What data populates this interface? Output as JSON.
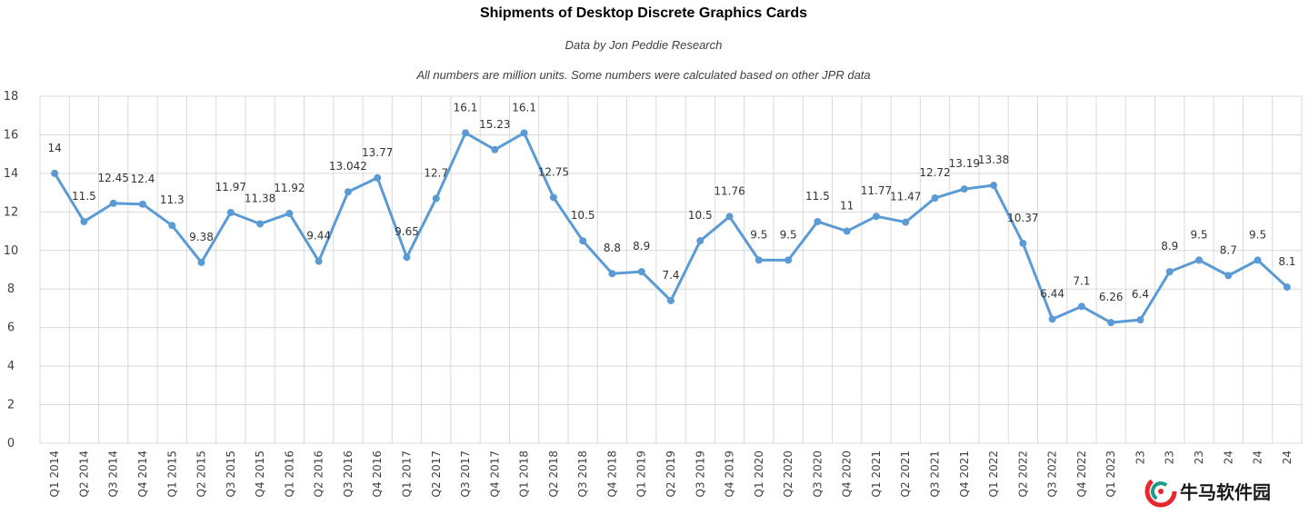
{
  "chart_data": {
    "type": "line",
    "title": "Shipments of Desktop Discrete Graphics Cards",
    "subtitles": [
      "Data by Jon Peddie Research",
      "All numbers are million units. Some numbers were calculated based on other JPR data"
    ],
    "xlabel": "",
    "ylabel": "",
    "ylim": [
      0,
      18
    ],
    "yticks": [
      0,
      2,
      4,
      6,
      8,
      10,
      12,
      14,
      16,
      18
    ],
    "grid": true,
    "line_color": "#5b9bd5",
    "categories": [
      "Q1 2014",
      "Q2 2014",
      "Q3 2014",
      "Q4 2014",
      "Q1 2015",
      "Q2 2015",
      "Q3 2015",
      "Q4 2015",
      "Q1 2016",
      "Q2 2016",
      "Q3 2016",
      "Q4 2016",
      "Q1 2017",
      "Q2 2017",
      "Q3 2017",
      "Q4 2017",
      "Q1 2018",
      "Q2 2018",
      "Q3 2018",
      "Q4 2018",
      "Q1 2019",
      "Q2 2019",
      "Q3 2019",
      "Q4 2019",
      "Q1 2020",
      "Q2 2020",
      "Q3 2020",
      "Q4 2020",
      "Q1 2021",
      "Q2 2021",
      "Q3 2021",
      "Q4 2021",
      "Q1 2022",
      "Q2 2022",
      "Q3 2022",
      "Q4 2022",
      "Q1 2023",
      "23",
      "23",
      "23",
      "24",
      "24",
      "24"
    ],
    "values": [
      14,
      11.5,
      12.45,
      12.4,
      11.3,
      9.38,
      11.97,
      11.38,
      11.92,
      9.44,
      13.042,
      13.77,
      9.65,
      12.7,
      16.1,
      15.23,
      16.1,
      12.75,
      10.5,
      8.8,
      8.9,
      7.4,
      10.5,
      11.76,
      9.5,
      9.5,
      11.5,
      11,
      11.77,
      11.47,
      12.72,
      13.19,
      13.38,
      10.37,
      6.44,
      7.1,
      6.26,
      6.4,
      8.9,
      9.5,
      8.7,
      9.5,
      8.1
    ],
    "labels": [
      "14",
      "11.5",
      "12.45",
      "12.4",
      "11.3",
      "9.38",
      "11.97",
      "11.38",
      "11.92",
      "9.44",
      "13.042",
      "13.77",
      "9.65",
      "12.7",
      "16.1",
      "15.23",
      "16.1",
      "12.75",
      "10.5",
      "8.8",
      "8.9",
      "7.4",
      "10.5",
      "11.76",
      "9.5",
      "9.5",
      "11.5",
      "11",
      "11.77",
      "11.47",
      "12.72",
      "13.19",
      "13.38",
      "10.37",
      "6.44",
      "7.1",
      "6.26",
      "6.4",
      "8.9",
      "9.5",
      "8.7",
      "9.5",
      "8.1"
    ]
  },
  "watermark": {
    "text": "牛马软件园",
    "logo_colors": [
      "#e8262d",
      "#1f9a8a"
    ]
  }
}
